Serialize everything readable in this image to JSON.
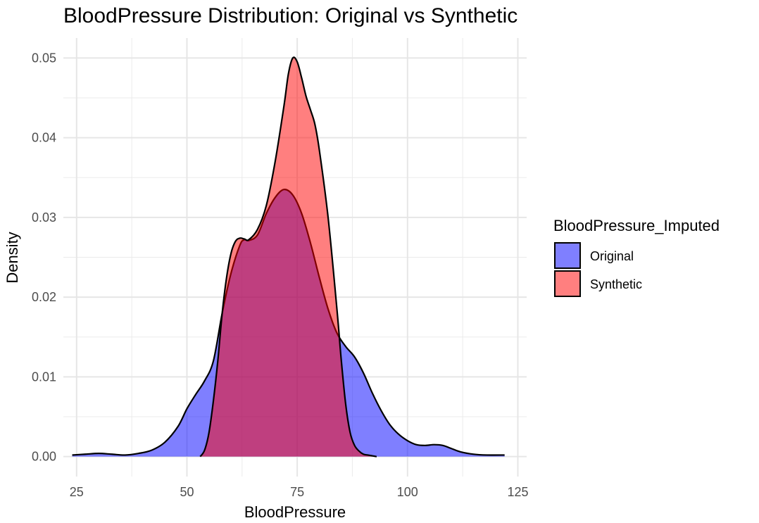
{
  "chart_data": {
    "type": "area",
    "title": "BloodPressure Distribution: Original vs Synthetic",
    "xlabel": "BloodPressure",
    "ylabel": "Density",
    "xlim": [
      22,
      127
    ],
    "ylim": [
      -0.0025,
      0.0525
    ],
    "x_ticks": [
      25,
      50,
      75,
      100,
      125
    ],
    "x_tick_labels": [
      "25",
      "50",
      "75",
      "100",
      "125"
    ],
    "y_ticks": [
      0,
      0.01,
      0.02,
      0.03,
      0.04,
      0.05
    ],
    "y_tick_labels": [
      "0.00",
      "0.01",
      "0.02",
      "0.03",
      "0.04",
      "0.05"
    ],
    "grid": true,
    "legend": {
      "title": "BloodPressure_Imputed",
      "position": "right"
    },
    "series": [
      {
        "name": "Original",
        "color": "#0000ff",
        "x": [
          24,
          27,
          30,
          33,
          36,
          39,
          42,
          45,
          48,
          50,
          52,
          54,
          56,
          58,
          60,
          62,
          63,
          64,
          66,
          68,
          70,
          72,
          74,
          76,
          78,
          80,
          82,
          84,
          86,
          88,
          90,
          92,
          94,
          96,
          98,
          100,
          102,
          104,
          106,
          108,
          110,
          112,
          115,
          118,
          122
        ],
        "values": [
          0.0002,
          0.0003,
          0.0004,
          0.0003,
          0.0002,
          0.0004,
          0.0008,
          0.0018,
          0.0038,
          0.006,
          0.0078,
          0.0095,
          0.012,
          0.018,
          0.023,
          0.0265,
          0.0272,
          0.0271,
          0.0278,
          0.0305,
          0.0325,
          0.0335,
          0.0328,
          0.0305,
          0.0268,
          0.0225,
          0.0185,
          0.0155,
          0.0138,
          0.0125,
          0.0105,
          0.008,
          0.0058,
          0.004,
          0.0028,
          0.002,
          0.0015,
          0.0014,
          0.0015,
          0.0014,
          0.001,
          0.0006,
          0.0003,
          0.0002,
          0.0002
        ]
      },
      {
        "name": "Synthetic",
        "color": "#ff0000",
        "x": [
          53,
          54,
          55,
          56,
          57,
          58,
          59,
          60,
          61,
          62,
          63,
          64,
          66,
          68,
          70,
          72,
          73,
          74,
          75,
          76,
          77,
          78,
          79,
          80,
          82,
          84,
          85,
          86,
          87,
          88,
          89,
          90,
          91,
          92,
          93
        ],
        "values": [
          0.0,
          0.0008,
          0.003,
          0.007,
          0.012,
          0.018,
          0.0225,
          0.0255,
          0.027,
          0.0274,
          0.0273,
          0.0272,
          0.0285,
          0.0315,
          0.037,
          0.044,
          0.048,
          0.05,
          0.0495,
          0.0475,
          0.0452,
          0.0435,
          0.0417,
          0.0385,
          0.03,
          0.0185,
          0.012,
          0.0065,
          0.003,
          0.0014,
          0.0007,
          0.0003,
          0.0002,
          0.0001,
          0.0
        ]
      }
    ]
  }
}
